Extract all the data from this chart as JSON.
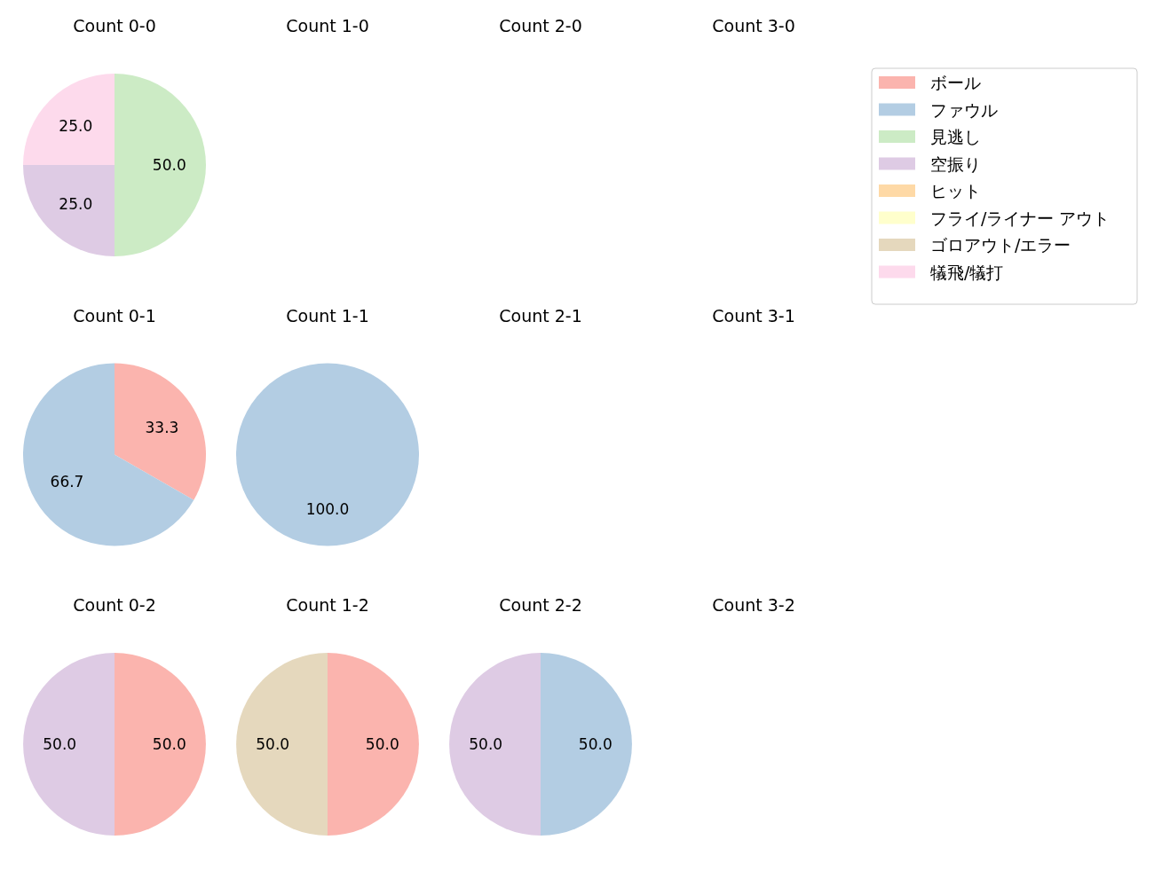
{
  "chart_data": [
    {
      "type": "pie",
      "title": "Count 0-0",
      "categories": [
        "ボール",
        "ファウル",
        "見逃し",
        "空振り",
        "ヒット",
        "フライ/ライナー アウト",
        "ゴロアウト/エラー",
        "犠飛/犠打"
      ],
      "values": [
        0,
        0,
        50,
        25,
        0,
        0,
        0,
        25
      ],
      "value_labels": [
        null,
        null,
        "50.0",
        "25.0",
        null,
        null,
        null,
        "25.0"
      ],
      "colors": [
        "#fbb4ae",
        "#b3cde3",
        "#ccebc5",
        "#decbe4",
        "#fed9a6",
        "#ffffcc",
        "#e5d8bd",
        "#fddaec"
      ],
      "legend": "right"
    },
    {
      "type": "other",
      "title": "Count 1-0"
    },
    {
      "type": "other",
      "title": "Count 2-0"
    },
    {
      "type": "other",
      "title": "Count 3-0"
    },
    {
      "type": "pie",
      "title": "Count 0-1",
      "categories": [
        null,
        null
      ],
      "values": [
        33.3,
        66.7
      ],
      "value_labels": [
        "33.3",
        "66.7"
      ],
      "colors": [
        "#fbb4ae",
        "#b3cde3"
      ]
    },
    {
      "type": "pie",
      "title": "Count 1-1",
      "categories": [
        null
      ],
      "values": [
        100
      ],
      "value_labels": [
        "100.0"
      ],
      "colors": [
        "#b3cde3"
      ]
    },
    {
      "type": "other",
      "title": "Count 2-1"
    },
    {
      "type": "other",
      "title": "Count 3-1"
    },
    {
      "type": "pie",
      "title": "Count 0-2",
      "categories": [
        null,
        null
      ],
      "values": [
        50,
        50
      ],
      "value_labels": [
        "50.0",
        "50.0"
      ],
      "colors": [
        "#fbb4ae",
        "#decbe4"
      ]
    },
    {
      "type": "pie",
      "title": "Count 1-2",
      "categories": [
        null,
        null
      ],
      "values": [
        50,
        50
      ],
      "value_labels": [
        "50.0",
        "50.0"
      ],
      "colors": [
        "#fbb4ae",
        "#e5d8bd"
      ]
    },
    {
      "type": "pie",
      "title": "Count 2-2",
      "categories": [
        null,
        null
      ],
      "values": [
        50,
        50
      ],
      "value_labels": [
        "50.0",
        "50.0"
      ],
      "colors": [
        "#b3cde3",
        "#decbe4"
      ]
    },
    {
      "type": "other",
      "title": "Count 3-2"
    }
  ]
}
